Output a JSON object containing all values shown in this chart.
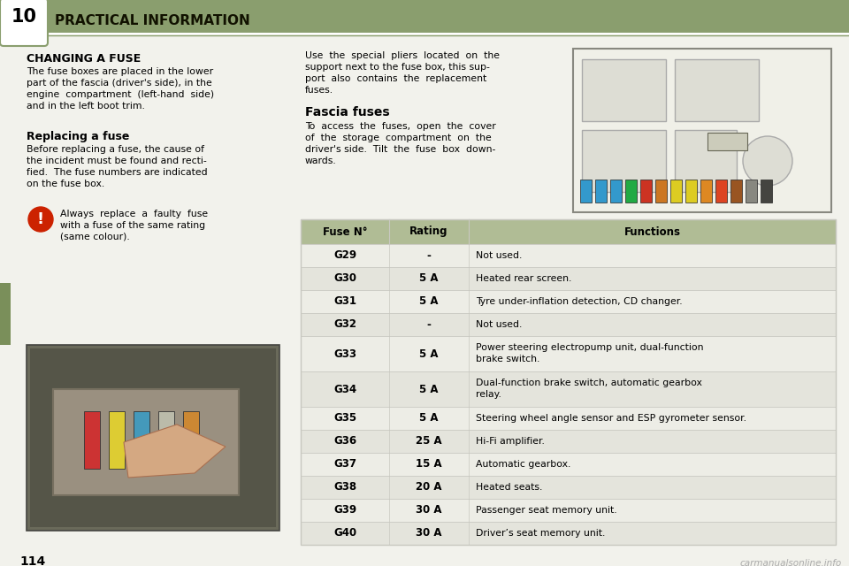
{
  "page_bg": "#f2f2ec",
  "header_bg": "#8a9e6e",
  "header_text": "PRACTICAL INFORMATION",
  "header_num": "10",
  "header_text_color": "#111100",
  "section_title1": "CHANGING A FUSE",
  "section_body1": [
    "The fuse boxes are placed in the lower",
    "part of the fascia (driver's side), in the",
    "engine  compartment  (left-hand  side)",
    "and in the left boot trim."
  ],
  "section_title2": "Replacing a fuse",
  "section_body2": [
    "Before replacing a fuse, the cause of",
    "the incident must be found and recti-",
    "fied.  The fuse numbers are indicated",
    "on the fuse box."
  ],
  "warning_text": [
    "Always  replace  a  faulty  fuse",
    "with a fuse of the same rating",
    "(same colour)."
  ],
  "right_para1": [
    "Use  the  special  pliers  located  on  the",
    "support next to the fuse box, this sup-",
    "port  also  contains  the  replacement",
    "fuses."
  ],
  "fascia_title": "Fascia fuses",
  "right_para2": [
    "To  access  the  fuses,  open  the  cover",
    "of  the  storage  compartment  on  the",
    "driver's side.  Tilt  the  fuse  box  down-",
    "wards."
  ],
  "table_header_bg": "#b0bc95",
  "table_row_bg_odd": "#ededE6",
  "table_row_bg_even": "#e4e4dc",
  "table_border": "#c8c8c0",
  "col_headers": [
    "Fuse N°",
    "Rating",
    "Functions"
  ],
  "table_data": [
    [
      "G29",
      "-",
      "Not used.",
      false
    ],
    [
      "G30",
      "5 A",
      "Heated rear screen.",
      false
    ],
    [
      "G31",
      "5 A",
      "Tyre under-inflation detection, CD changer.",
      false
    ],
    [
      "G32",
      "-",
      "Not used.",
      false
    ],
    [
      "G33",
      "5 A",
      "Power steering electropump unit, dual-function\nbrake switch.",
      true
    ],
    [
      "G34",
      "5 A",
      "Dual-function brake switch, automatic gearbox\nrelay.",
      true
    ],
    [
      "G35",
      "5 A",
      "Steering wheel angle sensor and ESP gyrometer sensor.",
      false
    ],
    [
      "G36",
      "25 A",
      "Hi-Fi amplifier.",
      false
    ],
    [
      "G37",
      "15 A",
      "Automatic gearbox.",
      false
    ],
    [
      "G38",
      "20 A",
      "Heated seats.",
      false
    ],
    [
      "G39",
      "30 A",
      "Passenger seat memory unit.",
      false
    ],
    [
      "G40",
      "30 A",
      "Driver’s seat memory unit.",
      false
    ]
  ],
  "page_num": "114",
  "watermark": "carmanualsonline.info",
  "left_tab_color": "#7a8f5a",
  "warning_icon_color": "#cc2200",
  "diagram_bg": "#f0f0e8",
  "diagram_border": "#888880",
  "relay_fill": "#ddddd4",
  "relay_border": "#aaaaaa",
  "fuse_colors": [
    "#3399cc",
    "#3399cc",
    "#3399cc",
    "#22aa44",
    "#cc3322",
    "#cc7722",
    "#ddcc22",
    "#ddcc22",
    "#dd8822",
    "#dd4422",
    "#995522",
    "#888880",
    "#444440"
  ],
  "photo_bg": "#6a6a5a",
  "photo_inner": "#555548",
  "drawer_fill": "#9a9080",
  "drawer_border": "#777060",
  "strip_colors": [
    "#cc3333",
    "#ddcc33",
    "#4499bb",
    "#bbbbaa",
    "#cc8833"
  ],
  "hand_color": "#d4a882"
}
